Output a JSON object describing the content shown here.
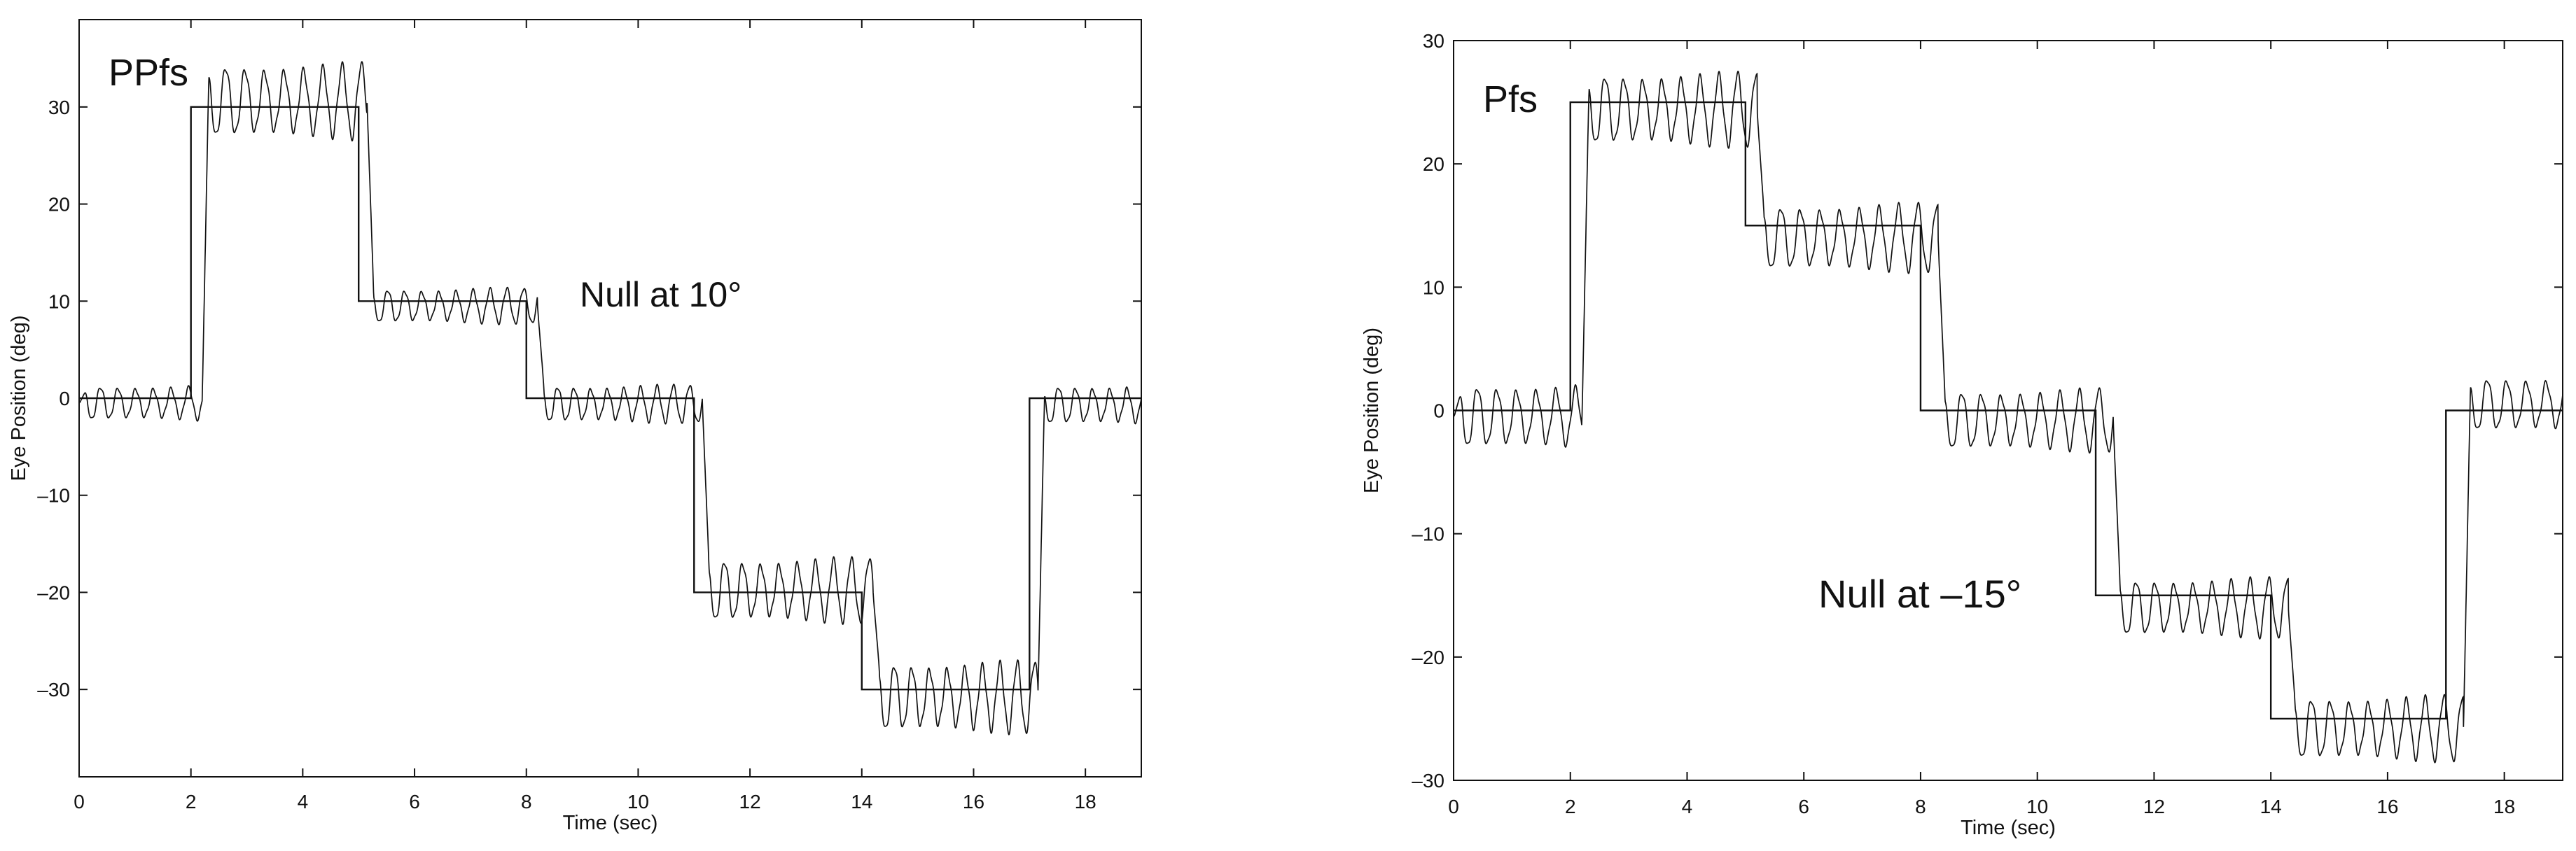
{
  "chart_data": [
    {
      "type": "line",
      "panel_label": "PPfs",
      "annotation": "Null at 10°",
      "xlabel": "Time (sec)",
      "ylabel": "Eye Position (deg)",
      "xlim": [
        0,
        19
      ],
      "ylim": [
        -39,
        39
      ],
      "xticks": [
        0,
        2,
        4,
        6,
        8,
        10,
        12,
        14,
        16,
        18
      ],
      "yticks": [
        -30,
        -20,
        -10,
        0,
        10,
        20,
        30
      ],
      "ytick_labels": [
        "–30",
        "–20",
        "–10",
        "0",
        "10",
        "20",
        "30"
      ],
      "grid": false,
      "series": [
        {
          "role": "target",
          "x": [
            0,
            2.0,
            5.0,
            8.0,
            11.0,
            14.0,
            17.0,
            19
          ],
          "values": [
            0,
            30,
            10,
            0,
            -20,
            -30,
            0,
            0
          ]
        },
        {
          "role": "eye",
          "segments": [
            {
              "t_start": 0,
              "t_end": 2.2,
              "level": 0,
              "bias": -0.5,
              "amp": 1.6,
              "freq": 3.2
            },
            {
              "t_start": 2.2,
              "t_end": 5.15,
              "level": 30,
              "bias": 0.6,
              "amp": 3.4,
              "freq": 2.9
            },
            {
              "t_start": 5.15,
              "t_end": 8.2,
              "level": 10,
              "bias": -0.5,
              "amp": 1.6,
              "freq": 3.3
            },
            {
              "t_start": 8.2,
              "t_end": 11.15,
              "level": 0,
              "bias": -0.6,
              "amp": 1.7,
              "freq": 3.4
            },
            {
              "t_start": 11.15,
              "t_end": 14.2,
              "level": -20,
              "bias": 0.2,
              "amp": 2.9,
              "freq": 3.1
            },
            {
              "t_start": 14.2,
              "t_end": 17.15,
              "level": -30,
              "bias": -0.8,
              "amp": 3.2,
              "freq": 3.2
            },
            {
              "t_start": 17.15,
              "t_end": 19,
              "level": 0,
              "bias": -0.7,
              "amp": 1.8,
              "freq": 3.3
            }
          ]
        }
      ]
    },
    {
      "type": "line",
      "panel_label": "Pfs",
      "annotation": "Null at –15°",
      "xlabel": "Time (sec)",
      "ylabel": "Eye Position (deg)",
      "xlim": [
        0,
        19
      ],
      "ylim": [
        -30,
        30
      ],
      "xticks": [
        0,
        2,
        4,
        6,
        8,
        10,
        12,
        14,
        16,
        18
      ],
      "yticks": [
        -30,
        -20,
        -10,
        0,
        10,
        20,
        30
      ],
      "ytick_labels": [
        "–30",
        "–20",
        "–10",
        "0",
        "10",
        "20",
        "30"
      ],
      "grid": false,
      "series": [
        {
          "role": "target",
          "x": [
            0,
            2.0,
            5.0,
            8.0,
            11.0,
            14.0,
            17.0,
            19
          ],
          "values": [
            0,
            25,
            15,
            0,
            -15,
            -25,
            0,
            0
          ]
        },
        {
          "role": "eye",
          "segments": [
            {
              "t_start": 0,
              "t_end": 2.2,
              "level": 0,
              "bias": -0.5,
              "amp": 2.3,
              "freq": 3.0
            },
            {
              "t_start": 2.2,
              "t_end": 5.2,
              "level": 25,
              "bias": -0.6,
              "amp": 2.6,
              "freq": 3.1
            },
            {
              "t_start": 5.2,
              "t_end": 8.3,
              "level": 15,
              "bias": -1.0,
              "amp": 2.4,
              "freq": 3.0
            },
            {
              "t_start": 8.3,
              "t_end": 11.3,
              "level": 0,
              "bias": -0.8,
              "amp": 2.2,
              "freq": 3.0
            },
            {
              "t_start": 11.3,
              "t_end": 14.3,
              "level": -15,
              "bias": -1.0,
              "amp": 2.1,
              "freq": 3.1
            },
            {
              "t_start": 14.3,
              "t_end": 17.3,
              "level": -25,
              "bias": -0.8,
              "amp": 2.3,
              "freq": 3.1
            },
            {
              "t_start": 17.3,
              "t_end": 19,
              "level": 0,
              "bias": 0.5,
              "amp": 2.0,
              "freq": 3.0
            }
          ]
        }
      ]
    }
  ]
}
